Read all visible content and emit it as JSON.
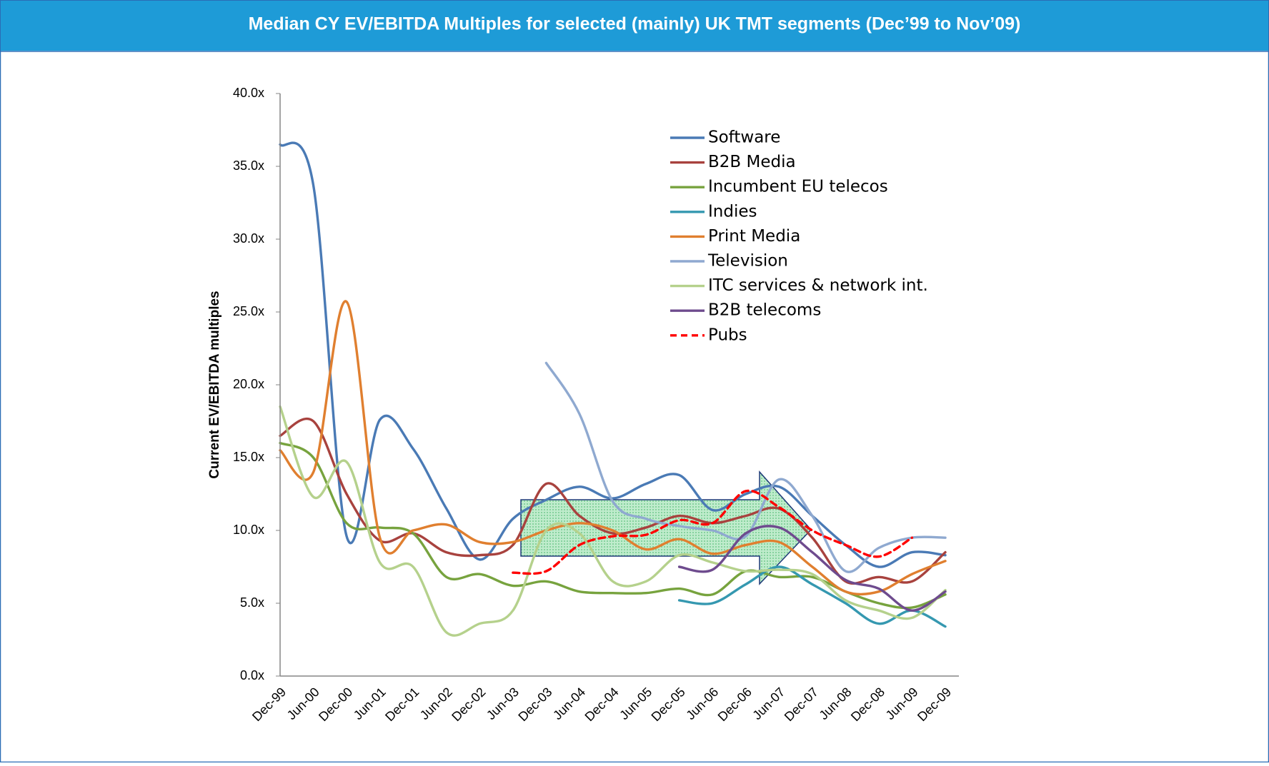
{
  "chart_data": {
    "type": "line",
    "title": "Median CY EV/EBITDA Multiples for selected  (mainly) UK TMT segments  (Dec’99  to  Nov’09)",
    "y_label": "Current EV/EBITDA multiples",
    "categories": [
      "Dec-99",
      "Jun-00",
      "Dec-00",
      "Jun-01",
      "Dec-01",
      "Jun-02",
      "Dec-02",
      "Jun-03",
      "Dec-03",
      "Jun-04",
      "Dec-04",
      "Jun-05",
      "Dec-05",
      "Jun-06",
      "Dec-06",
      "Jun-07",
      "Dec-07",
      "Jun-08",
      "Dec-08",
      "Jun-09",
      "Dec-09"
    ],
    "ylim": [
      0,
      40
    ],
    "yticks": [
      {
        "value": 0,
        "label": "0.0x"
      },
      {
        "value": 5,
        "label": "5.0x"
      },
      {
        "value": 10,
        "label": "10.0x"
      },
      {
        "value": 15,
        "label": "15.0x"
      },
      {
        "value": 20,
        "label": "20.0x"
      },
      {
        "value": 25,
        "label": "25.0x"
      },
      {
        "value": 30,
        "label": "30.0x"
      },
      {
        "value": 35,
        "label": "35.0x"
      },
      {
        "value": 40,
        "label": "40.0x"
      }
    ],
    "series": [
      {
        "name": "Software",
        "color": "#4a7ab5",
        "values": [
          36.5,
          33.7,
          9.6,
          17.6,
          15.6,
          11.5,
          8,
          10.8,
          12.1,
          13,
          12.2,
          13.2,
          13.8,
          11.4,
          12.5,
          13,
          11,
          9,
          7.5,
          8.5,
          8.3
        ]
      },
      {
        "name": "B2B Media",
        "color": "#a8423e",
        "values": [
          16.5,
          17.5,
          12.5,
          9.3,
          9.8,
          8.5,
          8.3,
          9,
          13.2,
          11,
          9.8,
          10.2,
          11,
          10.5,
          11,
          11.5,
          9.5,
          6.5,
          6.8,
          6.5,
          8.5
        ]
      },
      {
        "name": "Incumbent EU telecos",
        "color": "#77a33e",
        "values": [
          16,
          15,
          10.5,
          10.2,
          9.8,
          6.8,
          7,
          6.2,
          6.5,
          5.8,
          5.7,
          5.7,
          6,
          5.6,
          7.2,
          6.8,
          6.8,
          5.8,
          5,
          4.7,
          5.6
        ]
      },
      {
        "name": "Indies",
        "color": "#3598b0",
        "values": [
          null,
          null,
          null,
          null,
          null,
          null,
          null,
          null,
          null,
          null,
          null,
          null,
          5.2,
          5,
          6.3,
          7.5,
          6.3,
          5,
          3.6,
          4.5,
          3.4
        ]
      },
      {
        "name": "Print Media",
        "color": "#e07f2f",
        "values": [
          15.5,
          14,
          25.7,
          9.5,
          10,
          10.4,
          9.2,
          9.2,
          10,
          10.5,
          10,
          8.7,
          9.4,
          8.4,
          9,
          9.2,
          7.5,
          5.8,
          5.8,
          7,
          7.9
        ]
      },
      {
        "name": "Television",
        "color": "#8fa9d0",
        "values": [
          null,
          null,
          null,
          null,
          null,
          null,
          null,
          null,
          21.5,
          18,
          12,
          10.8,
          10.3,
          10,
          9.6,
          13.5,
          11,
          7.2,
          8.8,
          9.5,
          9.5
        ]
      },
      {
        "name": "ITC services & network int.",
        "color": "#b5d18c",
        "values": [
          18.5,
          12.3,
          14.7,
          7.8,
          7.5,
          3,
          3.6,
          4.5,
          10,
          9.8,
          6.5,
          6.5,
          8.3,
          7.8,
          7.2,
          7.3,
          7,
          5.2,
          4.5,
          4,
          5.9
        ]
      },
      {
        "name": "B2B telecoms",
        "color": "#6e4b8e",
        "values": [
          null,
          null,
          null,
          null,
          null,
          null,
          null,
          null,
          null,
          null,
          null,
          null,
          7.5,
          7.3,
          9.8,
          10.2,
          8.5,
          6.6,
          6,
          4.5,
          5.8
        ]
      },
      {
        "name": "Pubs",
        "color": "#ff0000",
        "line_style": "dashed",
        "values": [
          null,
          null,
          null,
          null,
          null,
          null,
          null,
          7.1,
          7.2,
          9,
          9.6,
          9.7,
          10.7,
          10.5,
          12.7,
          11.6,
          10,
          9,
          8.2,
          9.5,
          null
        ]
      }
    ]
  }
}
